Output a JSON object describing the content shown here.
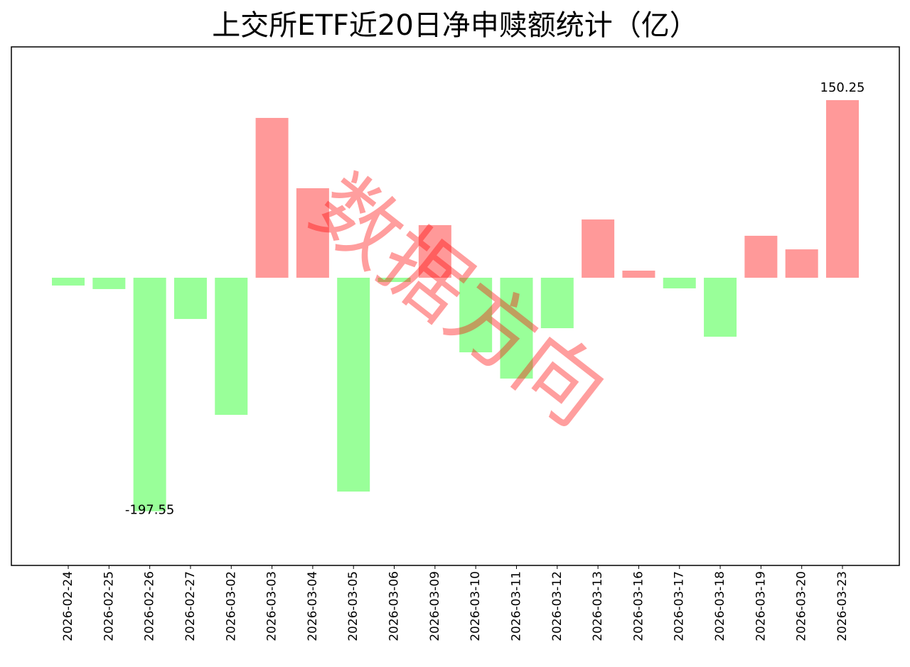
{
  "chart_data": {
    "type": "bar",
    "title": "上交所ETF近20日净申赎额统计（亿）",
    "watermark": "数据方向",
    "categories": [
      "2026-02-24",
      "2026-02-25",
      "2026-02-26",
      "2026-02-27",
      "2026-03-02",
      "2026-03-03",
      "2026-03-04",
      "2026-03-05",
      "2026-03-06",
      "2026-03-09",
      "2026-03-10",
      "2026-03-11",
      "2026-03-12",
      "2026-03-13",
      "2026-03-16",
      "2026-03-17",
      "2026-03-18",
      "2026-03-19",
      "2026-03-20",
      "2026-03-23"
    ],
    "values": [
      -6.6,
      -9.6,
      -197.55,
      -34.9,
      -116.0,
      135.2,
      75.7,
      -180.9,
      -3.6,
      44.5,
      -63.1,
      -85.3,
      -42.7,
      49.3,
      6.0,
      -9.0,
      -49.9,
      35.5,
      24.0,
      150.25
    ],
    "value_labels": [
      null,
      null,
      "-197.55",
      null,
      null,
      null,
      null,
      null,
      null,
      null,
      null,
      null,
      null,
      null,
      null,
      null,
      null,
      null,
      null,
      "150.25"
    ],
    "color_positive": "#ff9999",
    "color_negative": "#99ff99",
    "ylim": [
      -243.4,
      195.3
    ]
  }
}
